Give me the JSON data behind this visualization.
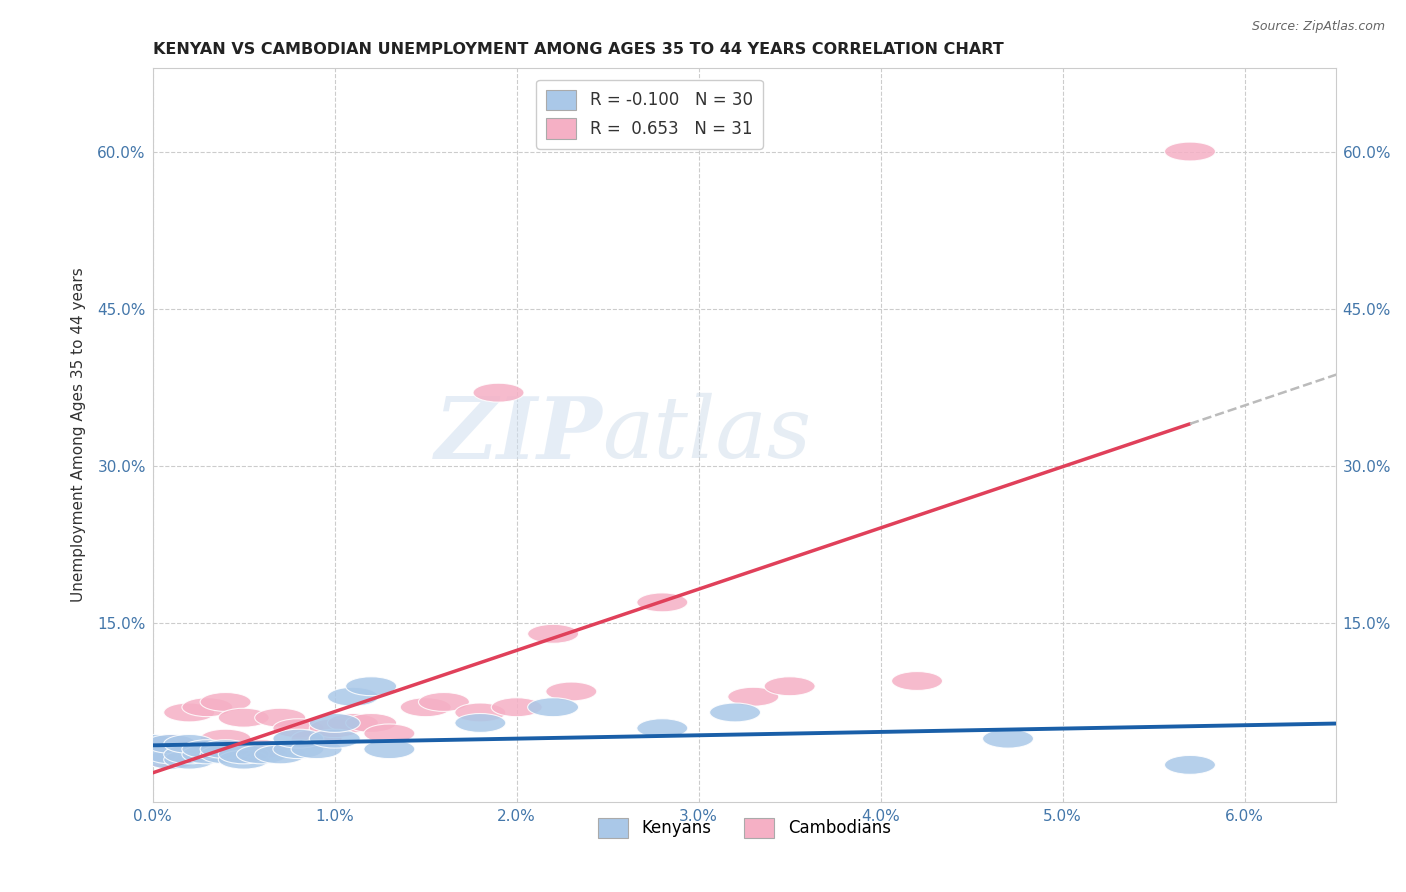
{
  "title": "KENYAN VS CAMBODIAN UNEMPLOYMENT AMONG AGES 35 TO 44 YEARS CORRELATION CHART",
  "source": "Source: ZipAtlas.com",
  "ylabel": "Unemployment Among Ages 35 to 44 years",
  "xlim": [
    0.0,
    0.065
  ],
  "ylim": [
    -0.02,
    0.68
  ],
  "xtick_labels": [
    "0.0%",
    "1.0%",
    "2.0%",
    "3.0%",
    "4.0%",
    "5.0%",
    "6.0%"
  ],
  "xtick_vals": [
    0.0,
    0.01,
    0.02,
    0.03,
    0.04,
    0.05,
    0.06
  ],
  "ytick_labels": [
    "15.0%",
    "30.0%",
    "45.0%",
    "60.0%"
  ],
  "ytick_vals": [
    0.15,
    0.3,
    0.45,
    0.6
  ],
  "kenyan_color": "#aac8e8",
  "cambodian_color": "#f5b0c5",
  "kenyan_R": -0.1,
  "kenyan_N": 30,
  "cambodian_R": 0.653,
  "cambodian_N": 31,
  "kenyan_line_color": "#1a5fa8",
  "cambodian_line_color": "#e0405a",
  "trendline_extend_color": "#bbbbbb",
  "background_color": "#ffffff",
  "grid_color": "#cccccc",
  "watermark_zip": "ZIP",
  "watermark_atlas": "atlas",
  "kenyan_x": [
    0.0,
    0.0,
    0.001,
    0.001,
    0.001,
    0.002,
    0.002,
    0.002,
    0.003,
    0.003,
    0.004,
    0.004,
    0.005,
    0.005,
    0.006,
    0.007,
    0.008,
    0.008,
    0.009,
    0.01,
    0.01,
    0.011,
    0.012,
    0.013,
    0.018,
    0.022,
    0.028,
    0.032,
    0.047,
    0.057
  ],
  "kenyan_y": [
    0.025,
    0.035,
    0.02,
    0.025,
    0.035,
    0.02,
    0.025,
    0.035,
    0.025,
    0.03,
    0.025,
    0.03,
    0.02,
    0.025,
    0.025,
    0.025,
    0.03,
    0.04,
    0.03,
    0.04,
    0.055,
    0.08,
    0.09,
    0.03,
    0.055,
    0.07,
    0.05,
    0.065,
    0.04,
    0.015
  ],
  "cambodian_x": [
    0.0,
    0.001,
    0.001,
    0.002,
    0.002,
    0.003,
    0.003,
    0.004,
    0.004,
    0.005,
    0.005,
    0.006,
    0.007,
    0.008,
    0.009,
    0.01,
    0.011,
    0.012,
    0.013,
    0.015,
    0.016,
    0.018,
    0.019,
    0.02,
    0.022,
    0.023,
    0.028,
    0.033,
    0.035,
    0.042,
    0.057
  ],
  "cambodian_y": [
    0.025,
    0.02,
    0.035,
    0.025,
    0.065,
    0.03,
    0.07,
    0.04,
    0.075,
    0.025,
    0.06,
    0.03,
    0.06,
    0.05,
    0.04,
    0.05,
    0.055,
    0.055,
    0.045,
    0.07,
    0.075,
    0.065,
    0.37,
    0.07,
    0.14,
    0.085,
    0.17,
    0.08,
    0.09,
    0.095,
    0.6
  ],
  "kenyan_trendline": [
    -0.00102,
    0.04
  ],
  "cambodian_trendline": [
    5.5,
    0.005
  ]
}
